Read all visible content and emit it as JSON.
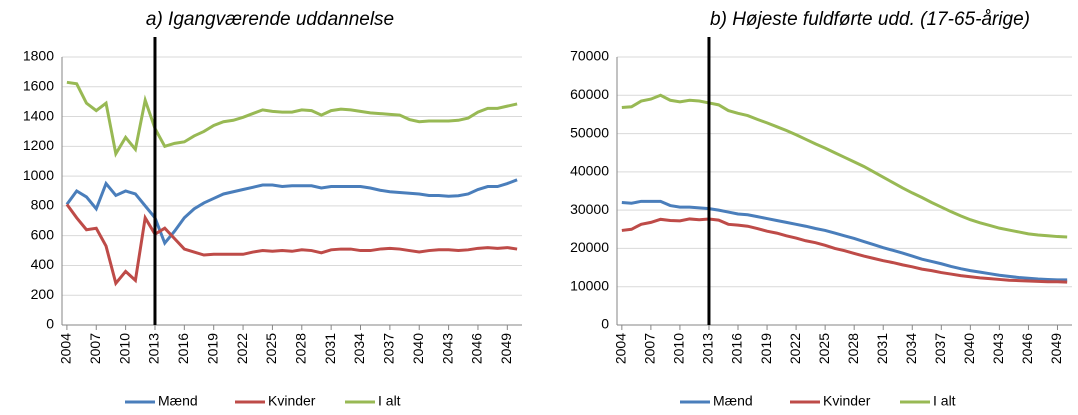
{
  "chart_data": [
    {
      "type": "line",
      "title": "a) Igangværende uddannelse",
      "x": [
        2004,
        2005,
        2006,
        2007,
        2008,
        2009,
        2010,
        2011,
        2012,
        2013,
        2014,
        2015,
        2016,
        2017,
        2018,
        2019,
        2020,
        2021,
        2022,
        2023,
        2024,
        2025,
        2026,
        2027,
        2028,
        2029,
        2030,
        2031,
        2032,
        2033,
        2034,
        2035,
        2036,
        2037,
        2038,
        2039,
        2040,
        2041,
        2042,
        2043,
        2044,
        2045,
        2046,
        2047,
        2048,
        2049,
        2050
      ],
      "xlim": [
        2003.5,
        2050.5
      ],
      "xticks": [
        2004,
        2007,
        2010,
        2013,
        2016,
        2019,
        2022,
        2025,
        2028,
        2031,
        2034,
        2037,
        2040,
        2043,
        2046,
        2049
      ],
      "ylim": [
        0,
        1800
      ],
      "yticks": [
        0,
        200,
        400,
        600,
        800,
        1000,
        1200,
        1400,
        1600,
        1800
      ],
      "grid": true,
      "legend": "bottom",
      "vline": 2013,
      "series": [
        {
          "name": "Mænd",
          "color": "#4a7ebb",
          "values": [
            810,
            900,
            860,
            780,
            950,
            870,
            900,
            880,
            800,
            720,
            550,
            630,
            720,
            780,
            820,
            850,
            880,
            895,
            910,
            925,
            940,
            940,
            930,
            935,
            935,
            935,
            920,
            930,
            930,
            930,
            930,
            920,
            905,
            895,
            890,
            885,
            880,
            870,
            870,
            865,
            868,
            880,
            910,
            930,
            930,
            950,
            975
          ]
        },
        {
          "name": "Kvinder",
          "color": "#be4b48",
          "values": [
            810,
            720,
            640,
            650,
            530,
            280,
            360,
            300,
            720,
            610,
            650,
            580,
            510,
            490,
            470,
            475,
            475,
            475,
            475,
            490,
            500,
            495,
            500,
            495,
            505,
            500,
            485,
            505,
            510,
            510,
            500,
            500,
            510,
            515,
            510,
            500,
            490,
            500,
            505,
            505,
            500,
            505,
            515,
            520,
            515,
            520,
            510
          ]
        },
        {
          "name": "I alt",
          "color": "#98b954",
          "values": [
            1630,
            1620,
            1490,
            1440,
            1490,
            1150,
            1260,
            1180,
            1510,
            1320,
            1200,
            1220,
            1230,
            1270,
            1300,
            1340,
            1365,
            1375,
            1395,
            1420,
            1445,
            1435,
            1430,
            1430,
            1445,
            1440,
            1410,
            1440,
            1450,
            1445,
            1435,
            1425,
            1420,
            1415,
            1410,
            1380,
            1365,
            1370,
            1370,
            1370,
            1375,
            1390,
            1430,
            1455,
            1455,
            1470,
            1485
          ]
        }
      ]
    },
    {
      "type": "line",
      "title": "b) Højeste fuldførte udd. (17-65-årige)",
      "x": [
        2004,
        2005,
        2006,
        2007,
        2008,
        2009,
        2010,
        2011,
        2012,
        2013,
        2014,
        2015,
        2016,
        2017,
        2018,
        2019,
        2020,
        2021,
        2022,
        2023,
        2024,
        2025,
        2026,
        2027,
        2028,
        2029,
        2030,
        2031,
        2032,
        2033,
        2034,
        2035,
        2036,
        2037,
        2038,
        2039,
        2040,
        2041,
        2042,
        2043,
        2044,
        2045,
        2046,
        2047,
        2048,
        2049,
        2050
      ],
      "xlim": [
        2003.5,
        2050.5
      ],
      "xticks": [
        2004,
        2007,
        2010,
        2013,
        2016,
        2019,
        2022,
        2025,
        2028,
        2031,
        2034,
        2037,
        2040,
        2043,
        2046,
        2049
      ],
      "ylim": [
        0,
        70000
      ],
      "yticks": [
        0,
        10000,
        20000,
        30000,
        40000,
        50000,
        60000,
        70000
      ],
      "grid": true,
      "legend": "bottom",
      "vline": 2013,
      "series": [
        {
          "name": "Mænd",
          "color": "#4a7ebb",
          "values": [
            32000,
            31800,
            32300,
            32300,
            32300,
            31200,
            30800,
            30800,
            30600,
            30400,
            30000,
            29500,
            29000,
            28800,
            28300,
            27800,
            27300,
            26800,
            26300,
            25800,
            25200,
            24700,
            24000,
            23300,
            22600,
            21800,
            21000,
            20200,
            19500,
            18800,
            18000,
            17200,
            16600,
            16000,
            15300,
            14700,
            14200,
            13800,
            13400,
            13000,
            12700,
            12400,
            12200,
            12000,
            11900,
            11800,
            11800
          ]
        },
        {
          "name": "Kvinder",
          "color": "#be4b48",
          "values": [
            24700,
            25000,
            26300,
            26800,
            27600,
            27300,
            27200,
            27700,
            27500,
            27700,
            27400,
            26300,
            26100,
            25800,
            25200,
            24500,
            24000,
            23300,
            22700,
            22000,
            21500,
            20800,
            20000,
            19400,
            18700,
            18000,
            17400,
            16800,
            16300,
            15700,
            15200,
            14600,
            14200,
            13700,
            13300,
            12900,
            12600,
            12300,
            12100,
            11900,
            11700,
            11600,
            11500,
            11400,
            11300,
            11300,
            11200
          ]
        },
        {
          "name": "I alt",
          "color": "#98b954",
          "values": [
            56800,
            57000,
            58500,
            59000,
            60000,
            58700,
            58300,
            58700,
            58500,
            58000,
            57500,
            56000,
            55300,
            54700,
            53700,
            52800,
            51800,
            50800,
            49700,
            48500,
            47300,
            46200,
            45000,
            43800,
            42600,
            41400,
            40000,
            38600,
            37200,
            35800,
            34500,
            33300,
            32000,
            30800,
            29600,
            28500,
            27500,
            26700,
            26000,
            25300,
            24800,
            24300,
            23800,
            23500,
            23300,
            23100,
            23000
          ]
        }
      ]
    }
  ]
}
